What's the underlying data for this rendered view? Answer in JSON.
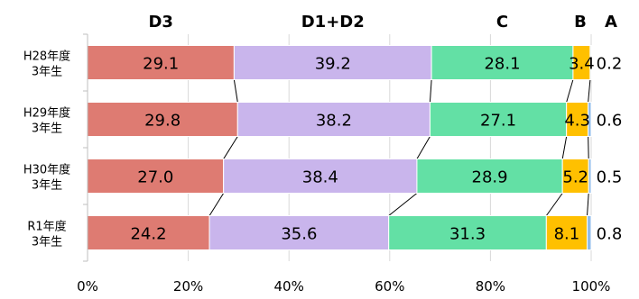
{
  "chart_data": {
    "type": "bar",
    "orientation": "horizontal",
    "stacked": "percent",
    "categories": [
      [
        "H28年度",
        "3年生"
      ],
      [
        "H29年度",
        "3年生"
      ],
      [
        "H30年度",
        "3年生"
      ],
      [
        "R1年度",
        "3年生"
      ]
    ],
    "series": [
      {
        "name": "D3",
        "color": "#de7b72",
        "values": [
          29.1,
          29.8,
          27.0,
          24.2
        ]
      },
      {
        "name": "D1+D2",
        "color": "#c9b5ec",
        "values": [
          39.2,
          38.2,
          38.4,
          35.6
        ]
      },
      {
        "name": "C",
        "color": "#63e0a5",
        "values": [
          28.1,
          27.1,
          28.9,
          31.3
        ]
      },
      {
        "name": "B",
        "color": "#ffc000",
        "values": [
          3.4,
          4.3,
          5.2,
          8.1
        ]
      },
      {
        "name": "A",
        "color": "#8fbcec",
        "values": [
          0.2,
          0.6,
          0.5,
          0.8
        ]
      }
    ],
    "xlim": [
      0,
      100
    ],
    "xticks": [
      "0%",
      "20%",
      "40%",
      "60%",
      "80%",
      "100%"
    ],
    "value_labels": {
      "D3": [
        "29.1",
        "29.8",
        "27.0",
        "24.2"
      ],
      "D1+D2": [
        "39.2",
        "38.2",
        "38.4",
        "35.6"
      ],
      "C": [
        "28.1",
        "27.1",
        "28.9",
        "31.3"
      ],
      "B": [
        "3.4",
        "4.3",
        "5.2",
        "8.1"
      ],
      "A": [
        "0.2",
        "0.6",
        "0.5",
        "0.8"
      ]
    },
    "legend_position": "top",
    "grid": true,
    "connector_lines": true
  }
}
